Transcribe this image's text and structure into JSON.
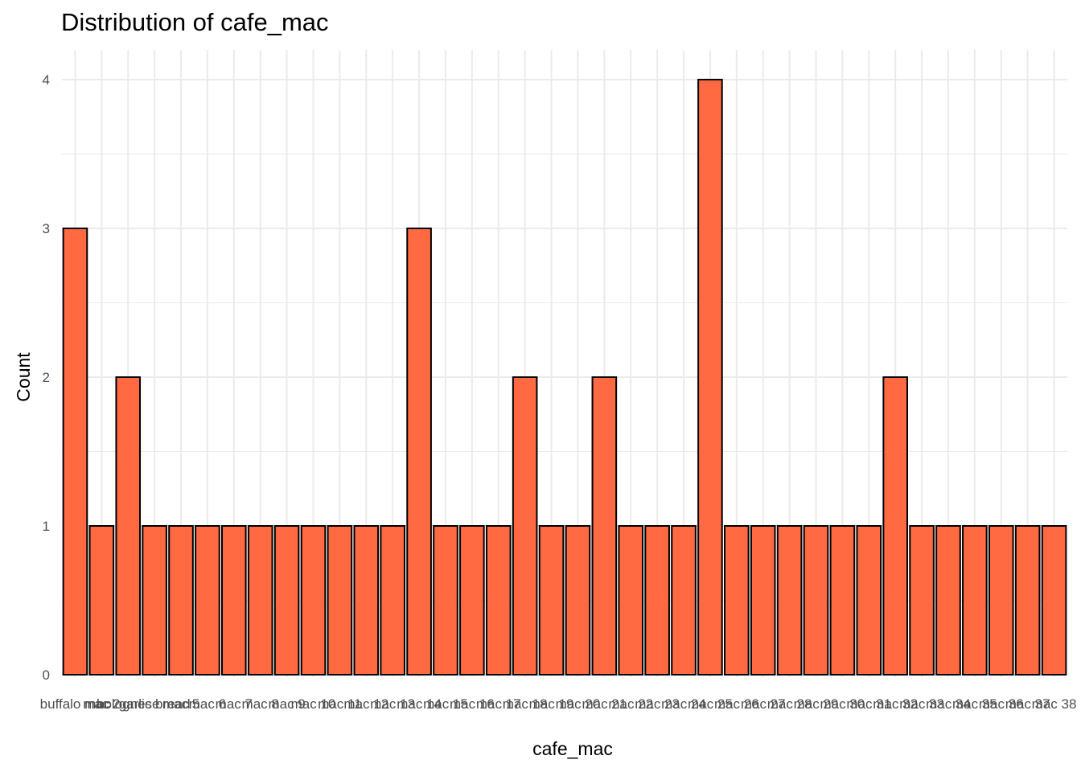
{
  "chart_data": {
    "type": "bar",
    "title": "Distribution of cafe_mac",
    "xlabel": "cafe_mac",
    "ylabel": "Count",
    "ylim": [
      0,
      4
    ],
    "yticks": [
      0,
      1,
      2,
      3,
      4
    ],
    "grid": true,
    "colors": {
      "bar_fill": "#FF6A43",
      "bar_stroke": "#000000",
      "grid": "#ebebeb"
    },
    "categories": [
      "buffalo mac",
      "mac 2",
      "bolognese",
      "garlic bread",
      "mac 5",
      "mac 6",
      "mac 7",
      "mac 8",
      "mac 9",
      "mac 10",
      "mac 11",
      "mac 12",
      "mac 13",
      "mac 14",
      "mac 15",
      "mac 16",
      "mac 17",
      "mac 18",
      "mac 19",
      "mac 20",
      "mac 21",
      "mac 22",
      "mac 23",
      "mac 24",
      "mac 25",
      "mac 26",
      "mac 27",
      "mac 28",
      "mac 29",
      "mac 30",
      "mac 31",
      "mac 32",
      "mac 33",
      "mac 34",
      "mac 35",
      "mac 36",
      "mac 37",
      "mac 38"
    ],
    "values": [
      3,
      1,
      2,
      1,
      1,
      1,
      1,
      1,
      1,
      1,
      1,
      1,
      1,
      3,
      1,
      1,
      1,
      2,
      1,
      1,
      2,
      1,
      1,
      1,
      4,
      1,
      1,
      1,
      1,
      1,
      1,
      2,
      1,
      1,
      1,
      1,
      1,
      1
    ]
  }
}
